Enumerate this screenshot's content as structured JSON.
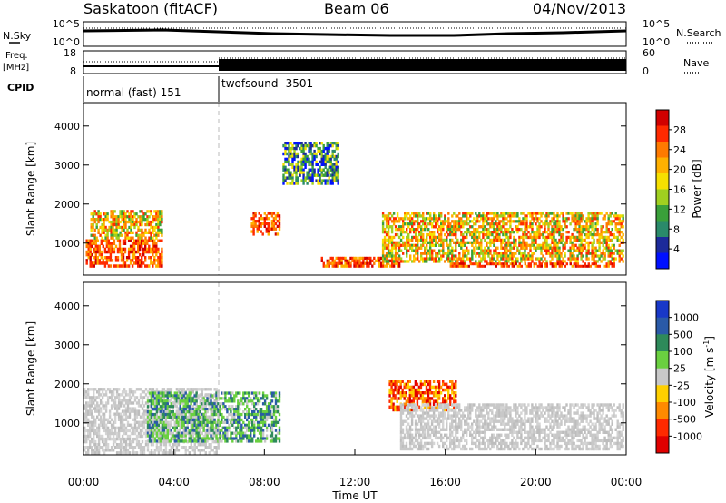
{
  "header": {
    "station": "Saskatoon (fitACF)",
    "beam": "Beam 06",
    "date": "04/Nov/2013"
  },
  "top_panel": {
    "nsky_label": "N.Sky",
    "nsearch_label": "N.Search",
    "yticks_left": [
      "10^5",
      "10^0"
    ],
    "yticks_right": [
      "10^5",
      "10^0"
    ],
    "freq_label": "Freq.",
    "freq_unit": "[MHz]",
    "freq_ticks": [
      "18",
      "8"
    ],
    "nave_label": "Nave",
    "nave_ticks": [
      "60",
      "0"
    ],
    "cpid_label": "CPID",
    "cpid_segments": [
      {
        "name": "normal (fast) 151",
        "start_hour": 0
      },
      {
        "name": "twofsound -3501",
        "start_hour": 6
      }
    ]
  },
  "power_colorbar": {
    "label": "Power [dB]",
    "ticks": [
      "28",
      "24",
      "20",
      "16",
      "12",
      "8",
      "4"
    ],
    "colors": [
      "#d10000",
      "#ff2a00",
      "#ff7a00",
      "#ffb000",
      "#f6e000",
      "#a0d020",
      "#3aa03a",
      "#2a8a6a",
      "#1c2a9a",
      "#0010ff"
    ]
  },
  "velocity_colorbar": {
    "label": "Velocity [m s",
    "label_exp": "-1",
    "label_end": "]",
    "ticks": [
      "1000",
      "500",
      "100",
      "25",
      "-25",
      "-100",
      "-500",
      "-1000"
    ],
    "colors": [
      "#1838c8",
      "#2a5aa8",
      "#2e8a5a",
      "#6ad040",
      "#c8c8c8",
      "#ffd000",
      "#ff8a00",
      "#ff2a00",
      "#e00000"
    ]
  },
  "chart_data": {
    "type": "heatmap",
    "xlabel": "Time UT",
    "ylabel": "Slant Range [km]",
    "xlim": [
      0,
      24
    ],
    "ylim": [
      180,
      4600
    ],
    "x_tick_labels": [
      "00:00",
      "04:00",
      "08:00",
      "12:00",
      "16:00",
      "20:00",
      "00:00"
    ],
    "y_tick_labels": [
      "1000",
      "2000",
      "3000",
      "4000"
    ],
    "y_ticks": [
      1000,
      2000,
      3000,
      4000
    ],
    "cpid_change_hour": 6,
    "power_echo_regions": [
      {
        "t0": 0.1,
        "t1": 3.5,
        "r0": 380,
        "r1": 1100,
        "level": "high"
      },
      {
        "t0": 0.3,
        "t1": 3.5,
        "r0": 1100,
        "r1": 1850,
        "level": "medium"
      },
      {
        "t0": 7.4,
        "t1": 8.7,
        "r0": 1200,
        "r1": 1800,
        "level": "high"
      },
      {
        "t0": 8.8,
        "t1": 11.3,
        "r0": 2500,
        "r1": 3600,
        "level": "low"
      },
      {
        "t0": 10.5,
        "t1": 14.0,
        "r0": 380,
        "r1": 650,
        "level": "high"
      },
      {
        "t0": 13.2,
        "t1": 23.9,
        "r0": 500,
        "r1": 1800,
        "level": "medium"
      },
      {
        "t0": 16.2,
        "t1": 23.5,
        "r0": 380,
        "r1": 500,
        "level": "high"
      }
    ],
    "velocity_echo_regions": [
      {
        "t0": 0.0,
        "t1": 6.0,
        "r0": 200,
        "r1": 1900,
        "level": "near-zero"
      },
      {
        "t0": 2.8,
        "t1": 8.7,
        "r0": 500,
        "r1": 1800,
        "level": "positive"
      },
      {
        "t0": 13.5,
        "t1": 16.5,
        "r0": 1300,
        "r1": 2100,
        "level": "negative"
      },
      {
        "t0": 14.0,
        "t1": 23.9,
        "r0": 300,
        "r1": 1500,
        "level": "near-zero"
      }
    ]
  }
}
